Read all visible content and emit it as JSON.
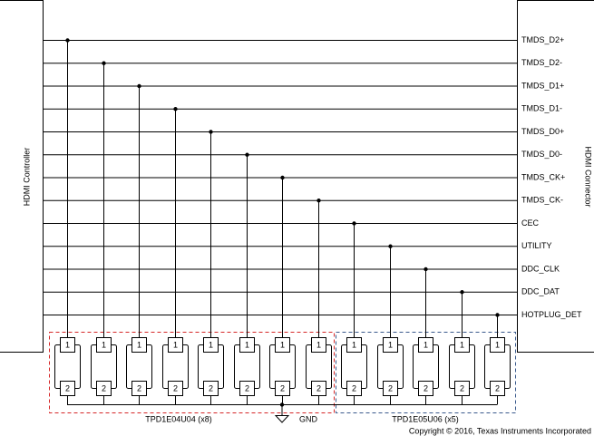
{
  "left_label": "HDMI Controller",
  "right_label": "HDMI Connector",
  "channels": [
    {
      "signal": "TMDS_D2+",
      "pin1": "1",
      "pin2": "2"
    },
    {
      "signal": "TMDS_D2-",
      "pin1": "1",
      "pin2": "2"
    },
    {
      "signal": "TMDS_D1+",
      "pin1": "1",
      "pin2": "2"
    },
    {
      "signal": "TMDS_D1-",
      "pin1": "1",
      "pin2": "2"
    },
    {
      "signal": "TMDS_D0+",
      "pin1": "1",
      "pin2": "2"
    },
    {
      "signal": "TMDS_D0-",
      "pin1": "1",
      "pin2": "2"
    },
    {
      "signal": "TMDS_CK+",
      "pin1": "1",
      "pin2": "2"
    },
    {
      "signal": "TMDS_CK-",
      "pin1": "1",
      "pin2": "2"
    },
    {
      "signal": "CEC",
      "pin1": "1",
      "pin2": "2"
    },
    {
      "signal": "UTILITY",
      "pin1": "1",
      "pin2": "2"
    },
    {
      "signal": "DDC_CLK",
      "pin1": "1",
      "pin2": "2"
    },
    {
      "signal": "DDC_DAT",
      "pin1": "1",
      "pin2": "2"
    },
    {
      "signal": "HOTPLUG_DET",
      "pin1": "1",
      "pin2": "2"
    }
  ],
  "groups": [
    {
      "label": "TPD1E04U04 (x8)"
    },
    {
      "label": "TPD1E05U06 (x5)"
    }
  ],
  "ground": "GND",
  "copyright": "Copyright © 2016, Texas Instruments Incorporated"
}
